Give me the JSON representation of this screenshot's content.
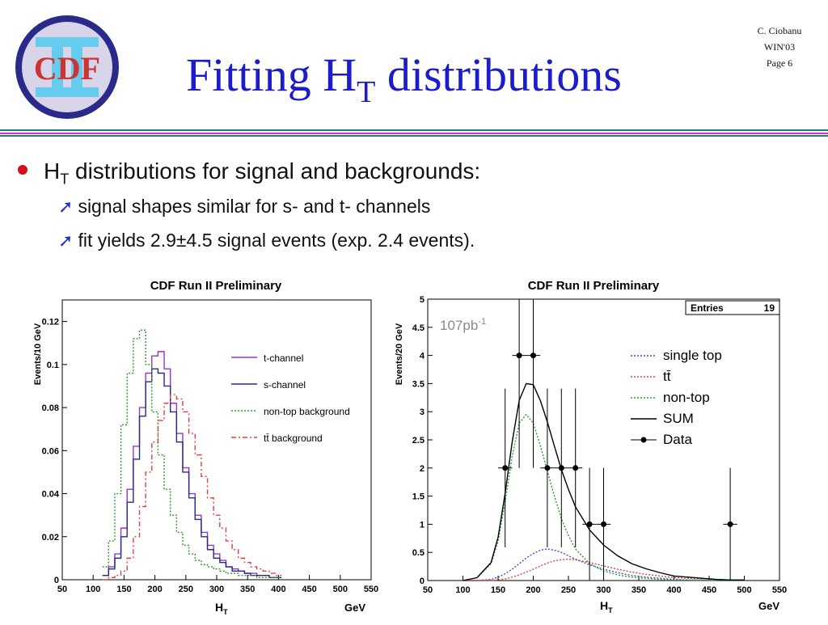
{
  "header": {
    "logo_text": "CDF",
    "title_main": "Fitting H",
    "title_sub": "T",
    "title_rest": " distributions",
    "author": "C. Ciobanu",
    "conference": "WIN'03",
    "page": "Page 6"
  },
  "colors": {
    "title": "#1c1ccc",
    "bullet": "#d0131a",
    "arrow": "#2233cc",
    "bar_green": "#1f7a7a",
    "bar_magenta": "#cc33cc"
  },
  "bullets": {
    "main_prefix": "H",
    "main_sub": "T",
    "main_text": " distributions for signal and backgrounds:",
    "items": [
      {
        "icon": "arrow-ne-icon",
        "text": "signal shapes similar for s- and t- channels"
      },
      {
        "icon": "arrow-ne-icon",
        "text": "fit yields 2.9±4.5 signal events (exp. 2.4 events)."
      }
    ]
  },
  "chart_data": [
    {
      "type": "line",
      "title": "CDF Run II Preliminary",
      "xlabel": "H",
      "xlabel_sub": "T",
      "xunit": "GeV",
      "ylabel": "Events/10 GeV",
      "xlim": [
        50,
        550
      ],
      "ylim": [
        0,
        0.13
      ],
      "xticks": [
        50,
        100,
        150,
        200,
        250,
        300,
        350,
        400,
        450,
        500,
        550
      ],
      "yticks": [
        0,
        0.02,
        0.04,
        0.06,
        0.08,
        0.1,
        0.12
      ],
      "legend_placement": "right",
      "x": [
        120,
        130,
        140,
        150,
        160,
        170,
        180,
        190,
        200,
        210,
        220,
        230,
        240,
        250,
        260,
        270,
        280,
        290,
        300,
        310,
        320,
        330,
        340,
        350,
        360,
        370,
        380,
        390,
        400
      ],
      "series": [
        {
          "name": "t-channel",
          "color": "#9933cc",
          "dash": "",
          "values": [
            0.002,
            0.006,
            0.012,
            0.024,
            0.042,
            0.062,
            0.08,
            0.096,
            0.104,
            0.106,
            0.098,
            0.082,
            0.068,
            0.052,
            0.04,
            0.03,
            0.022,
            0.016,
            0.012,
            0.009,
            0.006,
            0.005,
            0.004,
            0.003,
            0.003,
            0.002,
            0.002,
            0.001,
            0.001
          ]
        },
        {
          "name": "s-channel",
          "color": "#2a2a8a",
          "dash": "",
          "values": [
            0.002,
            0.005,
            0.01,
            0.02,
            0.036,
            0.056,
            0.076,
            0.092,
            0.098,
            0.096,
            0.09,
            0.078,
            0.064,
            0.05,
            0.038,
            0.028,
            0.02,
            0.014,
            0.01,
            0.008,
            0.006,
            0.004,
            0.004,
            0.003,
            0.002,
            0.002,
            0.002,
            0.001,
            0.001
          ]
        },
        {
          "name": "non-top background",
          "color": "#2e9a2e",
          "dash": "2,2",
          "values": [
            0.006,
            0.018,
            0.04,
            0.072,
            0.096,
            0.112,
            0.116,
            0.1,
            0.078,
            0.058,
            0.042,
            0.03,
            0.022,
            0.016,
            0.012,
            0.009,
            0.007,
            0.006,
            0.005,
            0.004,
            0.003,
            0.003,
            0.002,
            0.002,
            0.002,
            0.001,
            0.001,
            0.001,
            0.001
          ]
        },
        {
          "name": "tt̄ background",
          "color": "#e04040",
          "dash": "6,3,2,3",
          "values": [
            0.0,
            0.001,
            0.002,
            0.004,
            0.01,
            0.02,
            0.034,
            0.05,
            0.064,
            0.074,
            0.082,
            0.086,
            0.084,
            0.078,
            0.068,
            0.058,
            0.048,
            0.038,
            0.03,
            0.024,
            0.018,
            0.014,
            0.01,
            0.008,
            0.006,
            0.005,
            0.004,
            0.003,
            0.002
          ]
        }
      ]
    },
    {
      "type": "line",
      "title": "CDF Run II Preliminary",
      "annotation_main": "107pb",
      "annotation_sup": "-1",
      "stats_label": "Entries",
      "stats_value": "19",
      "xlabel": "H",
      "xlabel_sub": "T",
      "xunit": "GeV",
      "ylabel": "Events/20 GeV",
      "xlim": [
        50,
        550
      ],
      "ylim": [
        0,
        5
      ],
      "xticks": [
        50,
        100,
        150,
        200,
        250,
        300,
        350,
        400,
        450,
        500,
        550
      ],
      "yticks": [
        0,
        0.5,
        1,
        1.5,
        2,
        2.5,
        3,
        3.5,
        4,
        4.5,
        5
      ],
      "legend_placement": "right",
      "x": [
        100,
        120,
        140,
        150,
        160,
        170,
        180,
        190,
        200,
        210,
        220,
        230,
        240,
        250,
        260,
        280,
        300,
        320,
        340,
        360,
        380,
        400,
        420,
        440,
        460,
        480,
        500
      ],
      "series": [
        {
          "name": "single top",
          "color": "#3355cc",
          "dash": "2,2",
          "values": [
            0.0,
            0.0,
            0.02,
            0.06,
            0.12,
            0.2,
            0.3,
            0.4,
            0.48,
            0.54,
            0.56,
            0.54,
            0.5,
            0.44,
            0.38,
            0.28,
            0.2,
            0.14,
            0.09,
            0.06,
            0.04,
            0.02,
            0.01,
            0.01,
            0.0,
            0.0,
            0.0
          ]
        },
        {
          "name": "tt̄",
          "color": "#e04040",
          "dash": "2,2",
          "values": [
            0.0,
            0.0,
            0.0,
            0.01,
            0.03,
            0.06,
            0.1,
            0.15,
            0.2,
            0.26,
            0.31,
            0.35,
            0.37,
            0.38,
            0.37,
            0.32,
            0.26,
            0.2,
            0.15,
            0.11,
            0.08,
            0.05,
            0.04,
            0.03,
            0.02,
            0.01,
            0.01
          ]
        },
        {
          "name": "non-top",
          "color": "#2e9a2e",
          "dash": "2,2",
          "values": [
            0.0,
            0.05,
            0.3,
            0.7,
            1.4,
            2.2,
            2.8,
            2.95,
            2.8,
            2.4,
            1.95,
            1.5,
            1.1,
            0.8,
            0.56,
            0.3,
            0.17,
            0.1,
            0.06,
            0.04,
            0.02,
            0.01,
            0.01,
            0.0,
            0.0,
            0.0,
            0.0
          ]
        },
        {
          "name": "SUM",
          "color": "#000000",
          "dash": "",
          "values": [
            0.0,
            0.05,
            0.32,
            0.77,
            1.55,
            2.46,
            3.2,
            3.5,
            3.48,
            3.2,
            2.82,
            2.39,
            1.97,
            1.62,
            1.31,
            0.9,
            0.63,
            0.44,
            0.3,
            0.21,
            0.14,
            0.08,
            0.06,
            0.04,
            0.02,
            0.01,
            0.01
          ]
        }
      ],
      "data_points": {
        "name": "Data",
        "x": [
          160,
          180,
          200,
          220,
          240,
          260,
          280,
          300,
          480
        ],
        "y": [
          2,
          4,
          4,
          2,
          2,
          2,
          1,
          1,
          1
        ],
        "yerr": [
          1.41,
          2.0,
          2.0,
          1.41,
          1.41,
          1.41,
          1.0,
          1.0,
          1.0
        ]
      }
    }
  ]
}
